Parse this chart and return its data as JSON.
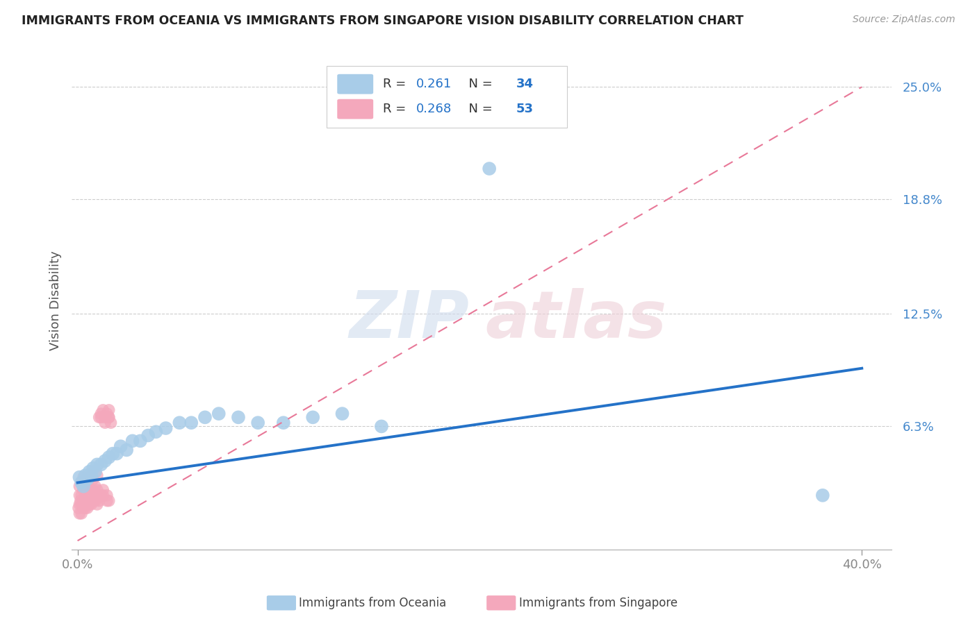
{
  "title": "IMMIGRANTS FROM OCEANIA VS IMMIGRANTS FROM SINGAPORE VISION DISABILITY CORRELATION CHART",
  "source": "Source: ZipAtlas.com",
  "xlabel_blue": "Immigrants from Oceania",
  "xlabel_pink": "Immigrants from Singapore",
  "ylabel": "Vision Disability",
  "xlim": [
    -0.003,
    0.415
  ],
  "ylim": [
    -0.005,
    0.27
  ],
  "xtick_vals": [
    0.0,
    0.4
  ],
  "xtick_labels": [
    "0.0%",
    "40.0%"
  ],
  "ytick_vals": [
    0.0,
    0.063,
    0.125,
    0.188,
    0.25
  ],
  "ytick_labels": [
    "",
    "6.3%",
    "12.5%",
    "18.8%",
    "25.0%"
  ],
  "R_blue": 0.261,
  "N_blue": 34,
  "R_pink": 0.268,
  "N_pink": 53,
  "color_blue": "#a8cce8",
  "color_pink": "#f4a8bc",
  "color_blue_line": "#2472c8",
  "color_pink_line": "#e87898",
  "color_axis": "#4488cc",
  "blue_x": [
    0.001,
    0.002,
    0.003,
    0.004,
    0.005,
    0.006,
    0.007,
    0.008,
    0.009,
    0.01,
    0.012,
    0.014,
    0.016,
    0.018,
    0.02,
    0.022,
    0.025,
    0.028,
    0.032,
    0.036,
    0.04,
    0.045,
    0.052,
    0.058,
    0.065,
    0.072,
    0.082,
    0.092,
    0.105,
    0.12,
    0.135,
    0.155,
    0.21,
    0.38
  ],
  "blue_y": [
    0.035,
    0.032,
    0.03,
    0.036,
    0.034,
    0.038,
    0.036,
    0.04,
    0.038,
    0.042,
    0.042,
    0.044,
    0.046,
    0.048,
    0.048,
    0.052,
    0.05,
    0.055,
    0.055,
    0.058,
    0.06,
    0.062,
    0.065,
    0.065,
    0.068,
    0.07,
    0.068,
    0.065,
    0.065,
    0.068,
    0.07,
    0.063,
    0.205,
    0.025
  ],
  "pink_x": [
    0.0005,
    0.001,
    0.001,
    0.001,
    0.001,
    0.0015,
    0.002,
    0.002,
    0.002,
    0.002,
    0.003,
    0.003,
    0.003,
    0.003,
    0.004,
    0.004,
    0.004,
    0.005,
    0.005,
    0.005,
    0.006,
    0.006,
    0.006,
    0.007,
    0.007,
    0.007,
    0.008,
    0.008,
    0.008,
    0.009,
    0.009,
    0.01,
    0.01,
    0.01,
    0.011,
    0.011,
    0.012,
    0.012,
    0.013,
    0.013,
    0.014,
    0.015,
    0.015,
    0.016,
    0.016,
    0.016,
    0.017,
    0.016,
    0.015,
    0.014,
    0.013,
    0.012,
    0.011
  ],
  "pink_y": [
    0.018,
    0.015,
    0.02,
    0.025,
    0.03,
    0.022,
    0.015,
    0.02,
    0.025,
    0.032,
    0.018,
    0.022,
    0.028,
    0.035,
    0.018,
    0.024,
    0.03,
    0.018,
    0.025,
    0.032,
    0.02,
    0.026,
    0.034,
    0.02,
    0.028,
    0.036,
    0.022,
    0.028,
    0.034,
    0.022,
    0.03,
    0.02,
    0.028,
    0.036,
    0.024,
    0.068,
    0.025,
    0.07,
    0.028,
    0.072,
    0.068,
    0.025,
    0.07,
    0.022,
    0.068,
    0.072,
    0.065,
    0.068,
    0.022,
    0.065,
    0.025,
    0.068,
    0.022
  ]
}
